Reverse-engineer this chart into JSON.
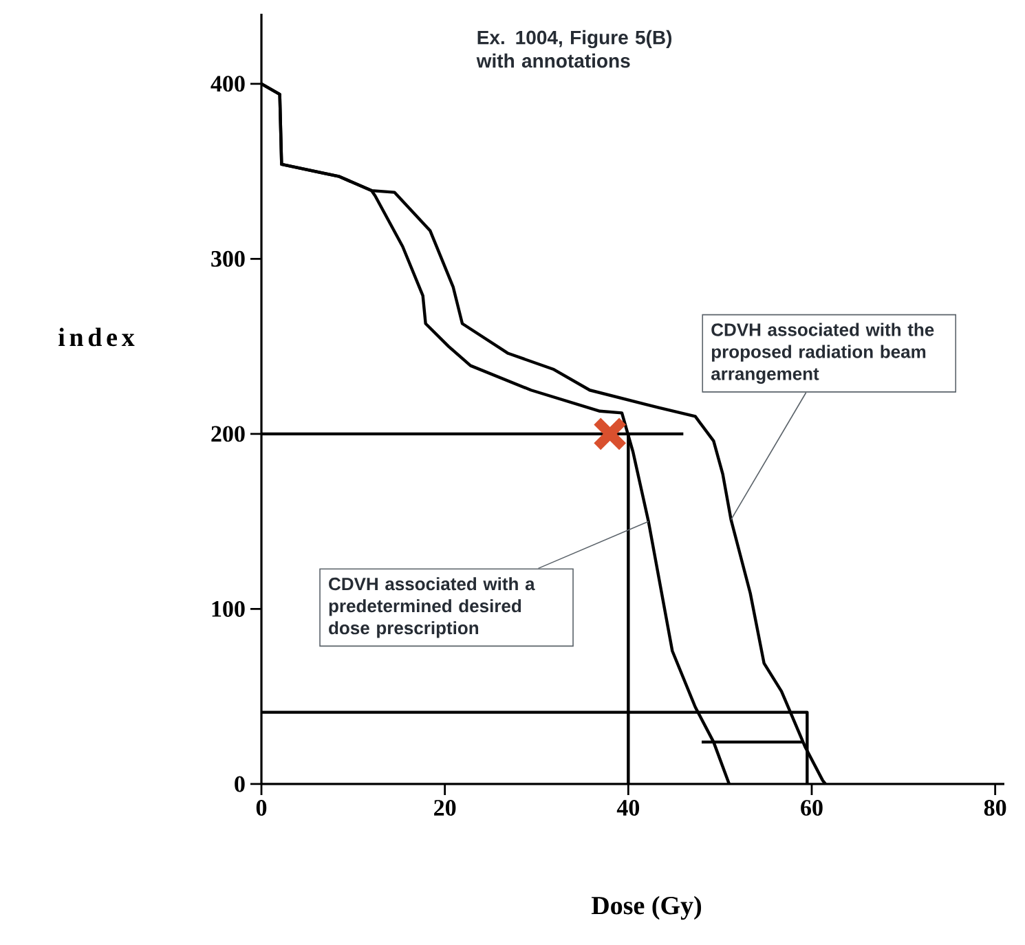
{
  "chart_data": {
    "type": "line",
    "title": "Ex. 1004, Figure 5(B) with annotations",
    "xlabel": "Dose (Gy)",
    "ylabel": "index",
    "xlim": [
      0,
      81
    ],
    "ylim": [
      0,
      440
    ],
    "xticks": [
      0,
      20,
      40,
      60,
      80
    ],
    "yticks": [
      0,
      100,
      200,
      300,
      400
    ],
    "grid": false,
    "series": [
      {
        "color": "#000000",
        "x": [
          0,
          2,
          2.2,
          8.5,
          12,
          12.4,
          15.4,
          17.6,
          17.9,
          20.4,
          22.8,
          29.4,
          36.9,
          39.3,
          40.5,
          42.2,
          44.8,
          47.3,
          49.3,
          51
        ],
        "values": [
          400,
          394,
          354,
          347,
          339,
          336,
          307,
          279,
          263,
          250,
          239,
          225,
          213,
          212,
          190,
          150,
          76,
          44,
          24,
          0
        ]
      },
      {
        "color": "#000000",
        "x": [
          0,
          2,
          2.2,
          8.5,
          12,
          14.5,
          18.4,
          20.9,
          21.9,
          26.9,
          31.8,
          35.8,
          41.8,
          43.3,
          47.3,
          49.3,
          50.3,
          51.2,
          53.3,
          54.8,
          56.7,
          59.3,
          61.2,
          61.5
        ],
        "values": [
          400,
          394,
          354,
          347,
          339,
          338,
          316,
          284,
          263,
          246,
          237,
          225,
          217,
          215,
          210,
          196,
          177,
          151,
          109,
          69,
          53,
          21,
          2,
          0
        ]
      },
      {
        "color": "#000000",
        "x": [
          0,
          46
        ],
        "values": [
          200,
          200
        ]
      },
      {
        "color": "#000000",
        "x": [
          40,
          40
        ],
        "values": [
          200,
          0
        ]
      },
      {
        "color": "#000000",
        "x": [
          0,
          59.5,
          59.5
        ],
        "values": [
          41,
          41,
          0
        ]
      },
      {
        "color": "#000000",
        "x": [
          59,
          48
        ],
        "values": [
          24,
          24
        ]
      },
      {
        "type": "scatter",
        "marker": "cross",
        "color": "#d9502e",
        "x": [
          38
        ],
        "values": [
          200
        ]
      }
    ],
    "annotations": [
      {
        "text": "CDVH associated with the proposed radiation beam arrangement",
        "x": 51.2,
        "y": 151
      },
      {
        "text": "CDVH associated with a predetermined desired dose prescription",
        "x": 42.2,
        "y": 150
      }
    ]
  }
}
